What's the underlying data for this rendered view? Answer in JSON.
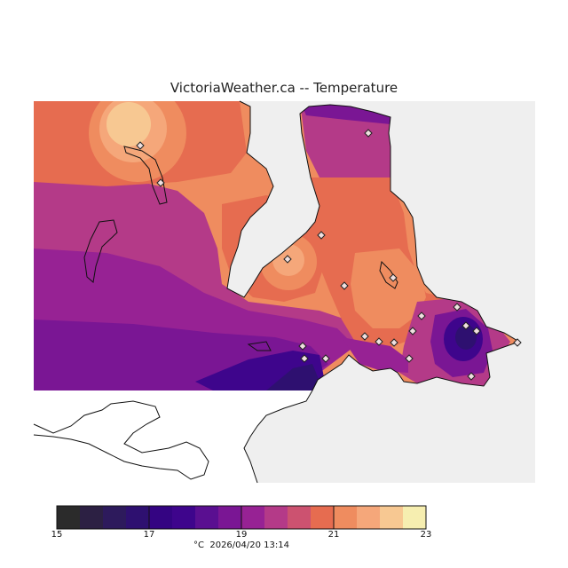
{
  "title": "VictoriaWeather.ca -- Temperature",
  "legend": {
    "min": 15,
    "max": 23,
    "tick_labels": [
      "15",
      "17",
      "19",
      "21",
      "23"
    ],
    "unit": "°C",
    "timestamp": "2026/04/20 13:14",
    "colors": [
      "#2b2b2b",
      "#2c2043",
      "#2d1a5c",
      "#2e1070",
      "#340482",
      "#3e058c",
      "#5a0f91",
      "#7a1694",
      "#972294",
      "#b43a88",
      "#cc5270",
      "#e66c50",
      "#ef8c5f",
      "#f5a77a",
      "#f7c892",
      "#f6eeb0"
    ]
  },
  "features": {
    "site_markers": [
      [
        158,
        164
      ],
      [
        181,
        206
      ],
      [
        415,
        150
      ],
      [
        362,
        265
      ],
      [
        324,
        292
      ],
      [
        443,
        313
      ],
      [
        388,
        322
      ],
      [
        475,
        356
      ],
      [
        515,
        346
      ],
      [
        525,
        367
      ],
      [
        537,
        373
      ],
      [
        465,
        373
      ],
      [
        411,
        379
      ],
      [
        427,
        385
      ],
      [
        444,
        386
      ],
      [
        341,
        390
      ],
      [
        343,
        404
      ],
      [
        367,
        404
      ],
      [
        461,
        404
      ],
      [
        531,
        424
      ],
      [
        583,
        386
      ]
    ]
  }
}
